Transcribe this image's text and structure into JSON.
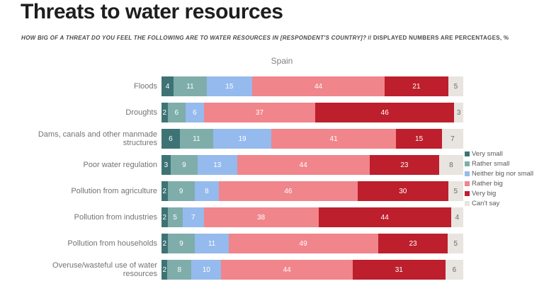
{
  "page": {
    "title": "Threats to water resources",
    "subtitle_question": "HOW BIG OF A THREAT DO YOU FEEL THE FOLLOWING ARE TO WATER RESOURCES IN [RESPONDENT'S COUNTRY]?",
    "subtitle_note": "// DISPLAYED NUMBERS ARE PERCENTAGES, %"
  },
  "chart_data": {
    "type": "bar",
    "orientation": "horizontal",
    "stacked": true,
    "group_title": "Spain",
    "xlim": [
      0,
      100
    ],
    "legend_position": "right",
    "value_labels": "inside",
    "categories": [
      "Floods",
      "Droughts",
      "Dams, canals and other manmade structures",
      "Poor water regulation",
      "Pollution from agriculture",
      "Pollution from industries",
      "Pollution from households",
      "Overuse/wasteful use of water resources"
    ],
    "series": [
      {
        "name": "Very small",
        "color": "#3e7375",
        "label_color": "#ffffff",
        "values": [
          4,
          2,
          6,
          3,
          2,
          2,
          2,
          2
        ]
      },
      {
        "name": "Rather small",
        "color": "#7fadaa",
        "label_color": "#ffffff",
        "values": [
          11,
          6,
          11,
          9,
          9,
          5,
          9,
          8
        ]
      },
      {
        "name": "Neither big nor small",
        "color": "#95baed",
        "label_color": "#ffffff",
        "values": [
          15,
          6,
          19,
          13,
          8,
          7,
          11,
          10
        ]
      },
      {
        "name": "Rather big",
        "color": "#f0858b",
        "label_color": "#ffffff",
        "values": [
          44,
          37,
          41,
          44,
          46,
          38,
          49,
          44
        ]
      },
      {
        "name": "Very big",
        "color": "#bd1f2c",
        "label_color": "#ffffff",
        "values": [
          21,
          46,
          15,
          23,
          30,
          44,
          23,
          31
        ]
      },
      {
        "name": "Can't say",
        "color": "#e8e4df",
        "label_color": "#6b6b6b",
        "values": [
          5,
          3,
          7,
          8,
          5,
          4,
          5,
          6
        ]
      }
    ]
  }
}
